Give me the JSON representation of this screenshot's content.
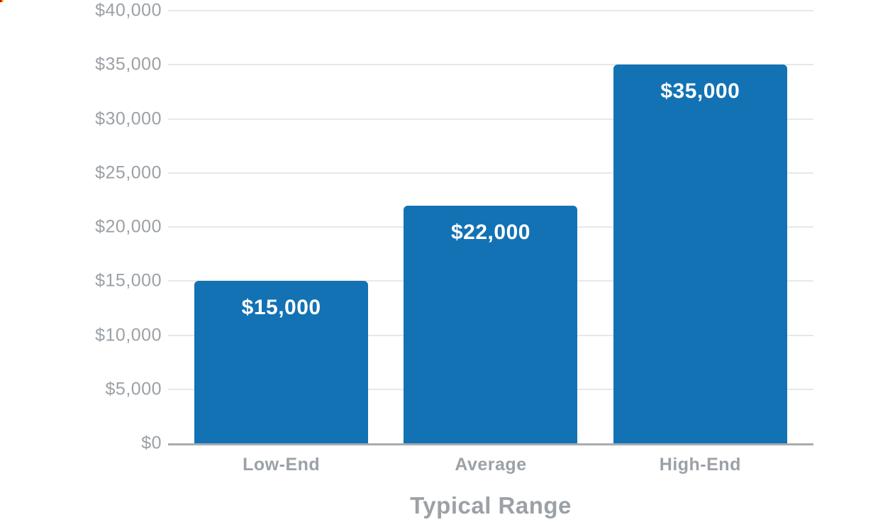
{
  "chart_data": {
    "type": "bar",
    "title": "",
    "xlabel": "Typical Range",
    "ylabel": "",
    "categories": [
      "Low-End",
      "Average",
      "High-End"
    ],
    "values": [
      15000,
      22000,
      35000
    ],
    "value_labels": [
      "$15,000",
      "$22,000",
      "$35,000"
    ],
    "ylim": [
      0,
      40000
    ],
    "ytick_values": [
      0,
      5000,
      10000,
      15000,
      20000,
      25000,
      30000,
      35000,
      40000
    ],
    "ytick_labels": [
      "$0",
      "$5,000",
      "$10,000",
      "$15,000",
      "$20,000",
      "$25,000",
      "$30,000",
      "$35,000",
      "$40,000"
    ],
    "grid": true,
    "legend": "none",
    "value_labels_position": "inside-top",
    "colors": {
      "bar": "#1272b4",
      "bar_value_label": "#ffffff",
      "axis_text": "#9ba1a6",
      "gridline": "#e8e8e8",
      "axis_line": "#a9abad",
      "background": "#ffffff"
    }
  }
}
